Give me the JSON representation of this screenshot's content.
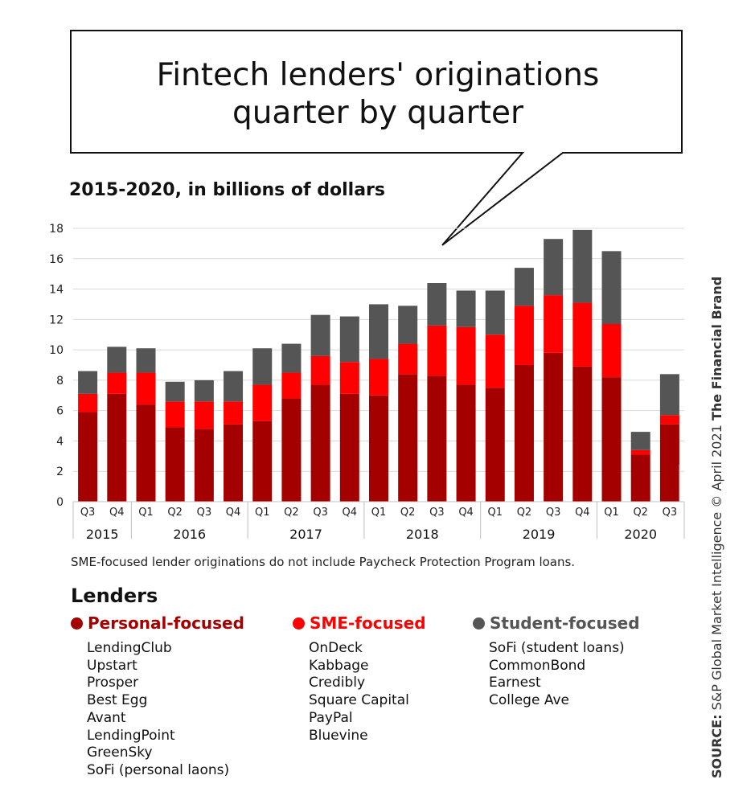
{
  "title": "Fintech lenders' originations quarter by quarter",
  "title_lines": [
    "Fintech lenders' originations",
    "quarter by quarter"
  ],
  "subtitle": "2015-2020, in billions of dollars",
  "note": "SME-focused lender originations do not include Paycheck Protection Program loans.",
  "lenders_title": "Lenders",
  "groups": [
    {
      "name": "Personal-focused",
      "color": "#a50000",
      "items": [
        "LendingClub",
        "Upstart",
        "Prosper",
        "Best Egg",
        "Avant",
        "LendingPoint",
        "GreenSky",
        "SoFi (personal laons)"
      ]
    },
    {
      "name": "SME-focused",
      "color": "#ff0000",
      "items": [
        "OnDeck",
        "Kabbage",
        "Credibly",
        "Square Capital",
        "PayPal",
        "Bluevine"
      ]
    },
    {
      "name": "Student-focused",
      "color": "#555555",
      "items": [
        "SoFi (student loans)",
        "CommonBond",
        "Earnest",
        "College Ave"
      ]
    }
  ],
  "source": {
    "label": "SOURCE:",
    "text": "S&P Global Market Intelligence © April 2021",
    "brand": "The Financial Brand"
  },
  "chart_data": {
    "type": "bar",
    "stacked": true,
    "categories": [
      "Q3",
      "Q4",
      "Q1",
      "Q2",
      "Q3",
      "Q4",
      "Q1",
      "Q2",
      "Q3",
      "Q4",
      "Q1",
      "Q2",
      "Q3",
      "Q4",
      "Q1",
      "Q2",
      "Q3",
      "Q4",
      "Q1",
      "Q2",
      "Q3"
    ],
    "years": [
      {
        "label": "2015",
        "count": 2
      },
      {
        "label": "2016",
        "count": 4
      },
      {
        "label": "2017",
        "count": 4
      },
      {
        "label": "2018",
        "count": 4
      },
      {
        "label": "2019",
        "count": 4
      },
      {
        "label": "2020",
        "count": 3
      }
    ],
    "series": [
      {
        "name": "Personal-focused",
        "color": "#a50000",
        "values": [
          5.9,
          7.1,
          6.4,
          4.9,
          4.8,
          5.1,
          5.3,
          6.8,
          7.7,
          7.1,
          7.0,
          8.4,
          8.3,
          7.7,
          7.5,
          9.0,
          9.8,
          8.9,
          8.2,
          3.1,
          5.1
        ]
      },
      {
        "name": "SME-focused",
        "color": "#ff0000",
        "values": [
          1.2,
          1.4,
          2.1,
          1.7,
          1.8,
          1.5,
          2.4,
          1.7,
          1.9,
          2.1,
          2.4,
          2.0,
          3.3,
          3.8,
          3.5,
          3.9,
          3.8,
          4.2,
          3.5,
          0.3,
          0.6
        ]
      },
      {
        "name": "Student-focused",
        "color": "#555555",
        "values": [
          1.5,
          1.7,
          1.6,
          1.3,
          1.4,
          2.0,
          2.4,
          1.9,
          2.7,
          3.0,
          3.6,
          2.5,
          2.8,
          2.4,
          2.9,
          2.5,
          3.7,
          4.8,
          4.8,
          1.2,
          2.7
        ]
      }
    ],
    "xlabel": "",
    "ylabel": "",
    "ylim": [
      0,
      18
    ],
    "yticks": [
      0,
      2,
      4,
      6,
      8,
      10,
      12,
      14,
      16,
      18
    ],
    "grid": true
  }
}
